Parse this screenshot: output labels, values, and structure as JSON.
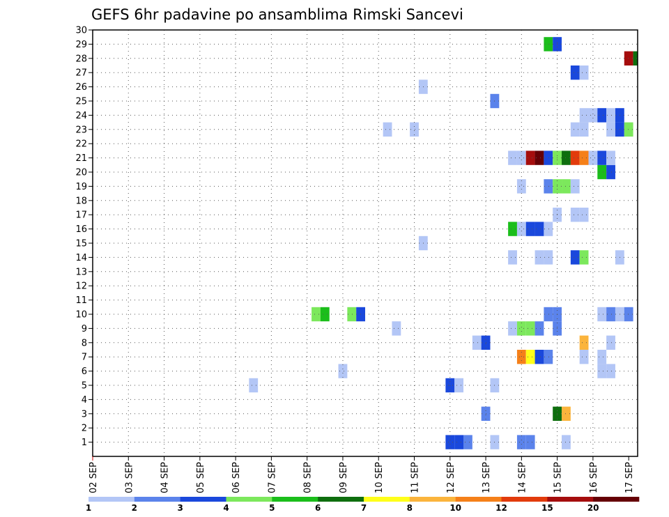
{
  "chart_data": {
    "type": "heatmap",
    "title": "GEFS 6hr padavine po ansamblima Rimski Sancevi",
    "xlabel": "",
    "ylabel": "",
    "x_ticks": [
      "02 SEP",
      "03 SEP",
      "04 SEP",
      "05 SEP",
      "06 SEP",
      "07 SEP",
      "08 SEP",
      "09 SEP",
      "10 SEP",
      "11 SEP",
      "12 SEP",
      "13 SEP",
      "14 SEP",
      "15 SEP",
      "16 SEP",
      "17 SEP"
    ],
    "xlim_hours": [
      0,
      366
    ],
    "time_step_hours": 6,
    "y_ticks": [
      1,
      2,
      3,
      4,
      5,
      6,
      7,
      8,
      9,
      10,
      11,
      12,
      13,
      14,
      15,
      16,
      17,
      18,
      19,
      20,
      21,
      22,
      23,
      24,
      25,
      26,
      27,
      28,
      29,
      30
    ],
    "ylim": [
      0,
      30
    ],
    "grid": true,
    "colorbar": {
      "levels": [
        "1",
        "2",
        "3",
        "4",
        "5",
        "6",
        "7",
        "8",
        "10",
        "12",
        "15",
        "20"
      ],
      "colors": [
        "#b3c6f6",
        "#5b83eb",
        "#1a48dc",
        "#7ce85c",
        "#1bbe1b",
        "#0e6e0e",
        "#ffff1a",
        "#fbb43c",
        "#f58019",
        "#e23b0c",
        "#a50d0d",
        "#650005"
      ]
    },
    "cells": [
      {
        "member": 1,
        "cells": [
          [
            240,
            3
          ],
          [
            246,
            3
          ],
          [
            252,
            2
          ],
          [
            270,
            1
          ],
          [
            288,
            2
          ],
          [
            294,
            2
          ],
          [
            318,
            1
          ]
        ]
      },
      {
        "member": 3,
        "cells": [
          [
            264,
            2
          ],
          [
            312,
            6
          ],
          [
            318,
            8
          ]
        ]
      },
      {
        "member": 5,
        "cells": [
          [
            108,
            1
          ],
          [
            240,
            3
          ],
          [
            246,
            1
          ],
          [
            270,
            1
          ]
        ]
      },
      {
        "member": 6,
        "cells": [
          [
            168,
            1
          ],
          [
            342,
            1
          ],
          [
            348,
            1
          ]
        ]
      },
      {
        "member": 7,
        "cells": [
          [
            288,
            9
          ],
          [
            294,
            7
          ],
          [
            300,
            3
          ],
          [
            306,
            2
          ],
          [
            330,
            1
          ],
          [
            342,
            1
          ]
        ]
      },
      {
        "member": 8,
        "cells": [
          [
            258,
            1
          ],
          [
            264,
            3
          ],
          [
            330,
            8
          ],
          [
            348,
            1
          ]
        ]
      },
      {
        "member": 9,
        "cells": [
          [
            204,
            1
          ],
          [
            282,
            1
          ],
          [
            288,
            4
          ],
          [
            294,
            4
          ],
          [
            300,
            2
          ],
          [
            312,
            2
          ]
        ]
      },
      {
        "member": 10,
        "cells": [
          [
            150,
            4
          ],
          [
            156,
            5
          ],
          [
            174,
            4
          ],
          [
            180,
            3
          ],
          [
            306,
            2
          ],
          [
            312,
            2
          ],
          [
            342,
            1
          ],
          [
            348,
            2
          ],
          [
            354,
            1
          ],
          [
            360,
            2
          ]
        ]
      },
      {
        "member": 14,
        "cells": [
          [
            282,
            1
          ],
          [
            300,
            1
          ],
          [
            306,
            1
          ],
          [
            324,
            3
          ],
          [
            330,
            4
          ],
          [
            354,
            1
          ]
        ]
      },
      {
        "member": 15,
        "cells": [
          [
            222,
            1
          ]
        ]
      },
      {
        "member": 16,
        "cells": [
          [
            282,
            5
          ],
          [
            288,
            1
          ],
          [
            294,
            3
          ],
          [
            300,
            3
          ],
          [
            306,
            1
          ]
        ]
      },
      {
        "member": 17,
        "cells": [
          [
            312,
            1
          ],
          [
            324,
            1
          ],
          [
            330,
            1
          ]
        ]
      },
      {
        "member": 19,
        "cells": [
          [
            288,
            1
          ],
          [
            306,
            2
          ],
          [
            312,
            4
          ],
          [
            318,
            4
          ],
          [
            324,
            1
          ]
        ]
      },
      {
        "member": 20,
        "cells": [
          [
            342,
            5
          ],
          [
            348,
            3
          ]
        ]
      },
      {
        "member": 21,
        "cells": [
          [
            282,
            1
          ],
          [
            288,
            1
          ],
          [
            294,
            11
          ],
          [
            300,
            12
          ],
          [
            306,
            3
          ],
          [
            312,
            4
          ],
          [
            318,
            6
          ],
          [
            324,
            10
          ],
          [
            330,
            9
          ],
          [
            336,
            1
          ],
          [
            342,
            3
          ],
          [
            348,
            1
          ]
        ]
      },
      {
        "member": 23,
        "cells": [
          [
            198,
            1
          ],
          [
            216,
            1
          ],
          [
            324,
            1
          ],
          [
            330,
            1
          ],
          [
            348,
            1
          ],
          [
            354,
            3
          ],
          [
            360,
            4
          ]
        ]
      },
      {
        "member": 24,
        "cells": [
          [
            330,
            1
          ],
          [
            336,
            1
          ],
          [
            342,
            3
          ],
          [
            348,
            1
          ],
          [
            354,
            3
          ]
        ]
      },
      {
        "member": 25,
        "cells": [
          [
            270,
            2
          ]
        ]
      },
      {
        "member": 26,
        "cells": [
          [
            222,
            1
          ]
        ]
      },
      {
        "member": 27,
        "cells": [
          [
            324,
            3
          ],
          [
            330,
            1
          ]
        ]
      },
      {
        "member": 28,
        "cells": [
          [
            360,
            11
          ],
          [
            366,
            6
          ]
        ]
      },
      {
        "member": 29,
        "cells": [
          [
            306,
            5
          ],
          [
            312,
            3
          ]
        ]
      }
    ]
  }
}
